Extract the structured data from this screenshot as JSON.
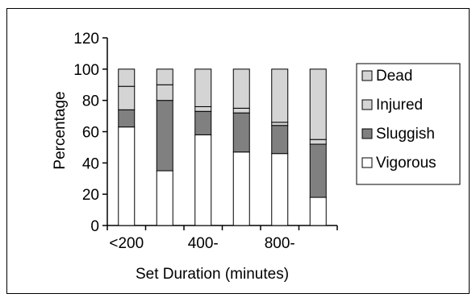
{
  "chart_data": {
    "type": "bar",
    "stacked": true,
    "x_tick_labels": [
      "<200",
      "",
      "400-",
      "",
      "800-",
      ""
    ],
    "xlabel": "Set Duration (minutes)",
    "ylabel": "Percentage",
    "ylim": [
      0,
      120
    ],
    "y_ticks": [
      0,
      20,
      40,
      60,
      80,
      100,
      120
    ],
    "grid": false,
    "legend_position": "right",
    "series": [
      {
        "name": "Vigorous",
        "color": "#ffffff",
        "values": [
          63,
          35,
          58,
          47,
          46,
          18
        ]
      },
      {
        "name": "Sluggish",
        "color": "#808080",
        "values": [
          11,
          45,
          15,
          25,
          18,
          34
        ]
      },
      {
        "name": "Injured",
        "color": "#d4d4d4",
        "values": [
          15,
          10,
          3,
          3,
          2,
          3
        ]
      },
      {
        "name": "Dead",
        "color": "#d4d4d4",
        "values": [
          11,
          10,
          24,
          25,
          34,
          45
        ]
      }
    ],
    "legend_order": [
      "Dead",
      "Injured",
      "Sluggish",
      "Vigorous"
    ]
  }
}
